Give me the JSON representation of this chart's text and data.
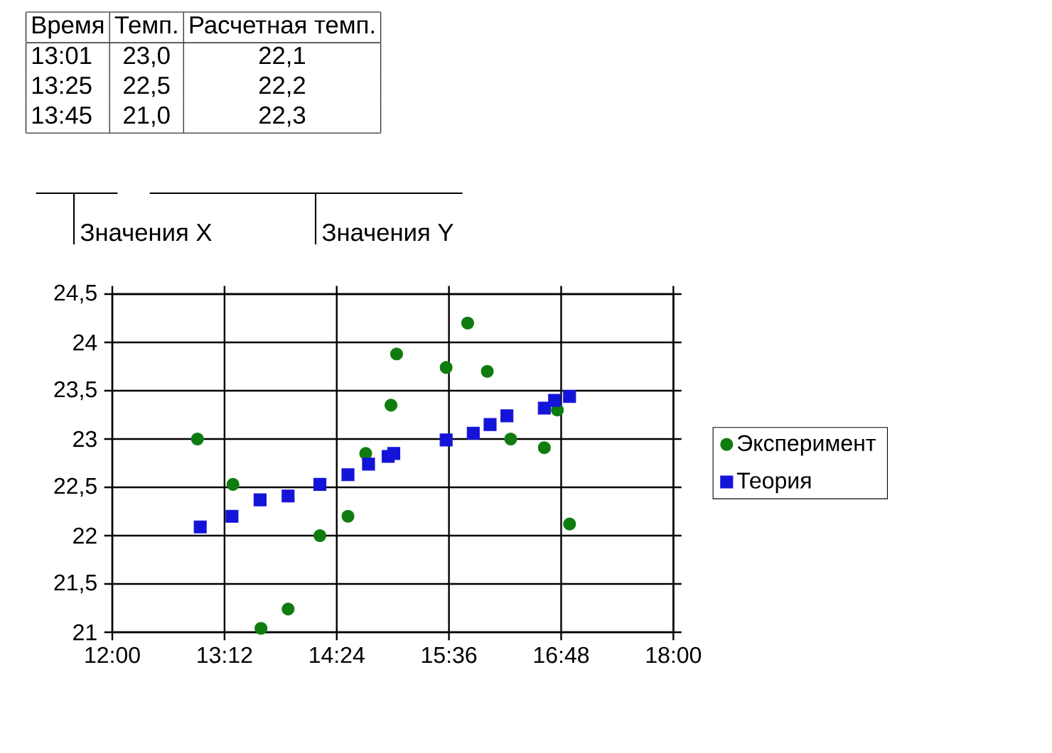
{
  "chart_data": {
    "type": "scatter",
    "annotations": [
      "Время",
      "Темп.",
      "Расчетная темп.",
      "13:01",
      "23,0",
      "22,1",
      "13:25",
      "22,5",
      "22,2",
      "13:45",
      "21,0",
      "22,3",
      "Значения X",
      "Значения Y"
    ],
    "series": [
      {
        "name": "Эксперимент",
        "color": "#107c10",
        "marker": "circle",
        "x": [
          12.91,
          13.29,
          13.59,
          13.88,
          14.22,
          14.52,
          14.71,
          14.98,
          15.04,
          15.57,
          15.8,
          16.01,
          16.26,
          16.62,
          16.76,
          16.89
        ],
        "values": [
          23.0,
          22.53,
          21.04,
          21.24,
          22.0,
          22.2,
          22.85,
          23.35,
          23.88,
          23.74,
          24.2,
          23.7,
          23.0,
          22.91,
          23.3,
          22.12
        ]
      },
      {
        "name": "Теория",
        "color": "#1414d8",
        "marker": "square",
        "x": [
          12.94,
          13.28,
          13.58,
          13.88,
          14.22,
          14.52,
          14.74,
          14.95,
          15.01,
          15.57,
          15.86,
          16.04,
          16.22,
          16.62,
          16.73,
          16.89
        ],
        "values": [
          22.09,
          22.2,
          22.37,
          22.41,
          22.53,
          22.63,
          22.74,
          22.82,
          22.85,
          22.99,
          23.06,
          23.15,
          23.24,
          23.32,
          23.4,
          23.44
        ]
      }
    ],
    "xlim": [
      12,
      18
    ],
    "xticks": [
      {
        "value": 12,
        "label": "12:00"
      },
      {
        "value": 13.2,
        "label": "13:12"
      },
      {
        "value": 14.4,
        "label": "14:24"
      },
      {
        "value": 15.6,
        "label": "15:36"
      },
      {
        "value": 16.8,
        "label": "16:48"
      },
      {
        "value": 18,
        "label": "18:00"
      }
    ],
    "ylim": [
      21,
      24.5
    ],
    "yticks": [
      21,
      {
        "value": 21.5,
        "label": "21,5"
      },
      22,
      {
        "value": 22.5,
        "label": "22,5"
      },
      23,
      {
        "value": 23.5,
        "label": "23,5"
      },
      24,
      {
        "value": 24.5,
        "label": "24,5"
      }
    ],
    "grid": true,
    "legend": "right"
  }
}
